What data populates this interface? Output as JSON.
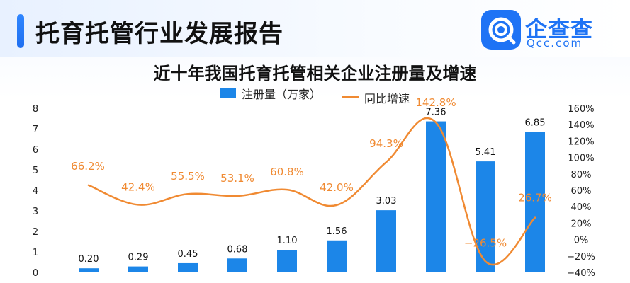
{
  "header": {
    "title": "托育托管行业发展报告"
  },
  "logo": {
    "cn": "企查查",
    "en": "Qcc.com"
  },
  "chart_data": {
    "type": "bar",
    "title": "近十年我国托育托管相关企业注册量及增速",
    "legend_placement": "top",
    "series": [
      {
        "name": "注册量（万家）",
        "type": "bar",
        "axis": "left",
        "color": "#1c86e8",
        "values": [
          0.2,
          0.29,
          0.45,
          0.68,
          1.1,
          1.56,
          3.03,
          7.36,
          5.41,
          6.85
        ],
        "labels": [
          "0.20",
          "0.29",
          "0.45",
          "0.68",
          "1.10",
          "1.56",
          "3.03",
          "7.36",
          "5.41",
          "6.85"
        ]
      },
      {
        "name": "同比增速",
        "type": "line",
        "axis": "right",
        "color": "#f08a32",
        "values": [
          66.2,
          42.4,
          55.5,
          53.1,
          60.8,
          42.0,
          94.3,
          142.8,
          -26.5,
          26.7
        ],
        "labels": [
          "66.2%",
          "42.4%",
          "55.5%",
          "53.1%",
          "60.8%",
          "42.0%",
          "94.3%",
          "142.8%",
          "−26.5%",
          "26.7%"
        ]
      }
    ],
    "y_left": {
      "range": [
        0,
        8
      ],
      "ticks": [
        "0",
        "1",
        "2",
        "3",
        "4",
        "5",
        "6",
        "7",
        "8"
      ]
    },
    "y_right": {
      "range": [
        -40,
        160
      ],
      "ticks": [
        "−40%",
        "−20%",
        "0%",
        "20%",
        "40%",
        "60%",
        "80%",
        "100%",
        "120%",
        "140%",
        "160%"
      ]
    },
    "grid": false
  }
}
